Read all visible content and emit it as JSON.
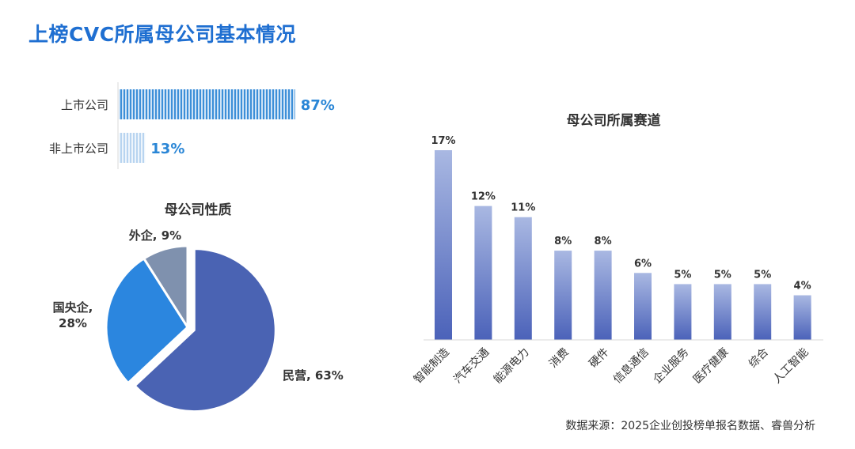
{
  "page": {
    "title": "上榜CVC所属母公司基本情况"
  },
  "source": "数据来源：2025企业创投榜单报名数据、睿兽分析",
  "colors": {
    "title": "#1f6fd1",
    "accent": "#2a86d6",
    "bar_top": "#a9b8e2",
    "bar_bottom": "#4b62b9"
  },
  "chart_data": [
    {
      "id": "listing",
      "type": "bar",
      "orientation": "horizontal",
      "title": "",
      "categories": [
        "上市公司",
        "非上市公司"
      ],
      "values": [
        87,
        13
      ],
      "value_labels": [
        "87%",
        "13%"
      ],
      "xlim": [
        0,
        100
      ],
      "legend": "none"
    },
    {
      "id": "nature",
      "type": "pie",
      "title": "母公司性质",
      "slices": [
        {
          "label": "民营",
          "value": 63,
          "text": "民营, 63%",
          "color": "#4a63b3"
        },
        {
          "label": "国央企",
          "value": 28,
          "text": "国央企,\n28%",
          "color": "#2b86df"
        },
        {
          "label": "外企",
          "value": 9,
          "text": "外企, 9%",
          "color": "#7f91ae"
        }
      ],
      "legend": "none"
    },
    {
      "id": "sector",
      "type": "bar",
      "title": "母公司所属赛道",
      "categories": [
        "智能制造",
        "汽车交通",
        "能源电力",
        "消费",
        "硬件",
        "信息通信",
        "企业服务",
        "医疗健康",
        "综合",
        "人工智能"
      ],
      "values": [
        17,
        12,
        11,
        8,
        8,
        6,
        5,
        5,
        5,
        4
      ],
      "value_labels": [
        "17%",
        "12%",
        "11%",
        "8%",
        "8%",
        "6%",
        "5%",
        "5%",
        "5%",
        "4%"
      ],
      "ylim": [
        0,
        17
      ],
      "legend": "none"
    }
  ]
}
